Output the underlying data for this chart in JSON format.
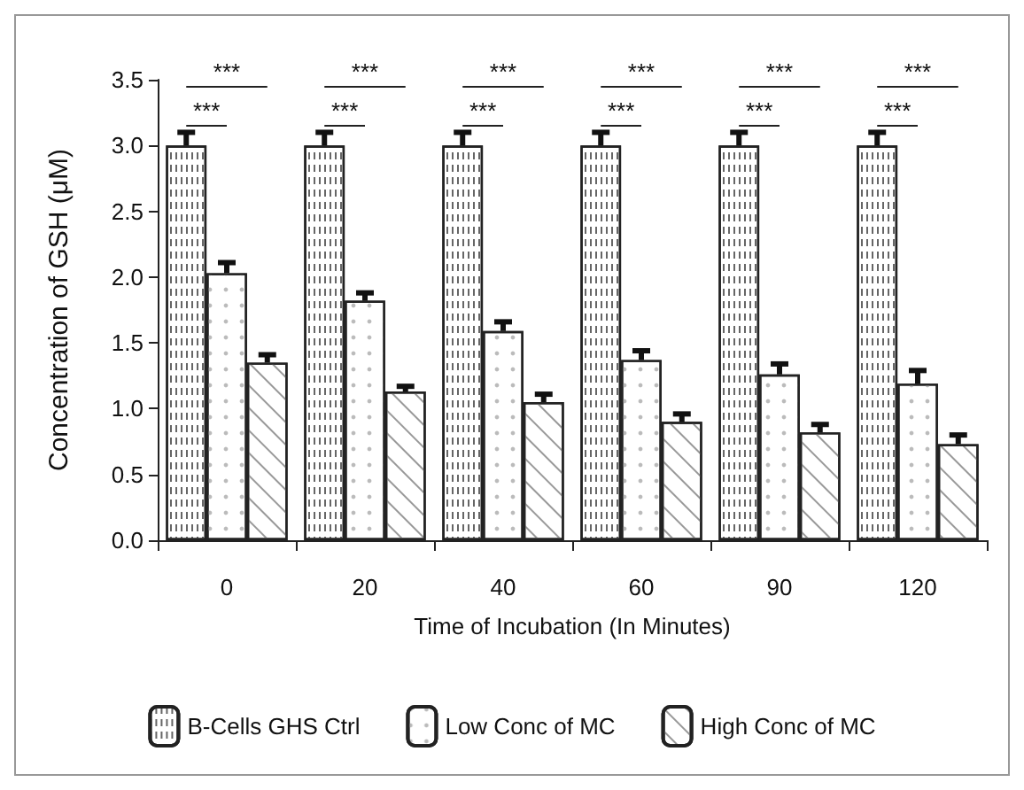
{
  "chart_data": {
    "type": "bar",
    "xlabel": "Time of Incubation (In Minutes)",
    "ylabel": "Concentration of GSH (μM)",
    "categories": [
      "0",
      "20",
      "40",
      "60",
      "90",
      "120"
    ],
    "series": [
      {
        "name": "B-Cells GHS Ctrl",
        "color": "#ffffff",
        "values": [
          3.0,
          3.0,
          3.0,
          3.0,
          3.0,
          3.0
        ],
        "errors": [
          0.1,
          0.1,
          0.1,
          0.1,
          0.1,
          0.1
        ]
      },
      {
        "name": "Low Conc of MC",
        "color": "#ffffff",
        "values": [
          2.03,
          1.82,
          1.59,
          1.37,
          1.26,
          1.19
        ],
        "errors": [
          0.08,
          0.06,
          0.07,
          0.07,
          0.08,
          0.1
        ]
      },
      {
        "name": "High Conc of MC",
        "color": "#ffffff",
        "values": [
          1.35,
          1.13,
          1.05,
          0.9,
          0.82,
          0.73
        ],
        "errors": [
          0.06,
          0.04,
          0.06,
          0.06,
          0.06,
          0.07
        ]
      }
    ],
    "annotations": [
      "***",
      "***",
      "***",
      "***",
      "***",
      "***",
      "***",
      "***",
      "***",
      "***",
      "***",
      "***"
    ],
    "ylim": [
      0,
      3.5
    ],
    "yticks": [
      {
        "value": 0,
        "label": "0.0"
      },
      0.5,
      {
        "value": 1,
        "label": "1.0"
      },
      1.5,
      {
        "value": 2,
        "label": "2.0"
      },
      2.5,
      {
        "value": 3,
        "label": "3.0"
      },
      3.5
    ],
    "grid": false,
    "legend": "bottom"
  }
}
